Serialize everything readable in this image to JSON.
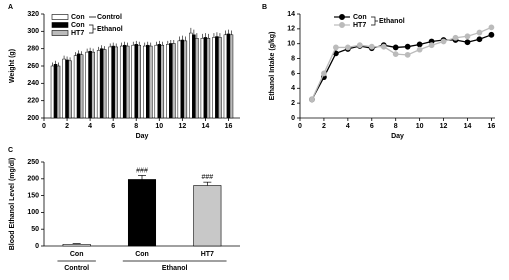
{
  "chart_data": [
    {
      "type": "bar",
      "panel": "A",
      "ylabel": "Weight (g)",
      "xlabel": "Day",
      "x": [
        1,
        2,
        3,
        4,
        5,
        6,
        7,
        8,
        9,
        10,
        11,
        12,
        13,
        14,
        15,
        16
      ],
      "xlim": [
        0,
        17
      ],
      "xticks": [
        0,
        2,
        4,
        6,
        8,
        10,
        12,
        14,
        16
      ],
      "ylim": [
        200,
        320
      ],
      "yticks": [
        200,
        220,
        240,
        260,
        280,
        300,
        320
      ],
      "groups": [
        {
          "name": "Control",
          "series": [
            {
              "name": "Con",
              "color": "#ffffff",
              "values": [
                260,
                268,
                272,
                276,
                278,
                282,
                283,
                284,
                283,
                284,
                285,
                289,
                298,
                292,
                293,
                296
              ],
              "errors": [
                4,
                4,
                4,
                4,
                4,
                4,
                4,
                4,
                4,
                4,
                4,
                5,
                6,
                5,
                5,
                5
              ]
            }
          ]
        },
        {
          "name": "Ethanol",
          "series": [
            {
              "name": "Con",
              "color": "#000000",
              "values": [
                262,
                267,
                274,
                277,
                280,
                283,
                284,
                285,
                284,
                285,
                286,
                290,
                296,
                293,
                294,
                297
              ],
              "errors": [
                4,
                4,
                4,
                4,
                4,
                4,
                4,
                4,
                4,
                4,
                4,
                5,
                6,
                5,
                5,
                5
              ]
            },
            {
              "name": "HT7",
              "color": "#bbbbbb",
              "values": [
                260,
                266,
                273,
                276,
                279,
                282,
                283,
                284,
                283,
                284,
                286,
                289,
                292,
                292,
                293,
                296
              ],
              "errors": [
                4,
                4,
                4,
                4,
                4,
                4,
                4,
                4,
                4,
                4,
                4,
                5,
                6,
                5,
                5,
                5
              ]
            }
          ]
        }
      ]
    },
    {
      "type": "line",
      "panel": "B",
      "ylabel": "Ethanol Intake (g/kg)",
      "xlabel": "Day",
      "x": [
        1,
        2,
        3,
        4,
        5,
        6,
        7,
        8,
        9,
        10,
        11,
        12,
        13,
        14,
        15,
        16
      ],
      "xlim": [
        0,
        16.3
      ],
      "xticks": [
        0,
        2,
        4,
        6,
        8,
        10,
        12,
        14,
        16
      ],
      "ylim": [
        0,
        14
      ],
      "yticks": [
        0,
        2,
        4,
        6,
        8,
        10,
        12,
        14
      ],
      "groups": [
        {
          "name": "Ethanol",
          "series": [
            {
              "name": "Con",
              "color": "#000000",
              "values": [
                2.5,
                5.5,
                8.7,
                9.3,
                9.7,
                9.4,
                9.8,
                9.5,
                9.6,
                9.9,
                10.3,
                10.5,
                10.5,
                10.2,
                10.6,
                11.2
              ]
            },
            {
              "name": "HT7",
              "color": "#bbbbbb",
              "values": [
                2.5,
                6,
                9.5,
                9.5,
                9.8,
                9.6,
                9.6,
                8.6,
                8.5,
                9.2,
                9.8,
                10.3,
                10.8,
                11,
                11.5,
                12.2
              ]
            }
          ]
        }
      ]
    },
    {
      "type": "bar",
      "panel": "C",
      "ylabel": "Blood Ethanol Level (mg/dl)",
      "ylim": [
        0,
        250
      ],
      "yticks": [
        0,
        50,
        100,
        150,
        200,
        250
      ],
      "groups": [
        {
          "name": "Control",
          "categories": [
            "Con"
          ],
          "values": [
            5
          ],
          "errors": [
            2
          ],
          "colors": [
            "#ffffff"
          ]
        },
        {
          "name": "Ethanol",
          "categories": [
            "Con",
            "HT7"
          ],
          "values": [
            198,
            180
          ],
          "errors": [
            12,
            10
          ],
          "colors": [
            "#000000",
            "#c8c8c8"
          ],
          "annotations": [
            "###",
            "###"
          ]
        }
      ]
    }
  ]
}
